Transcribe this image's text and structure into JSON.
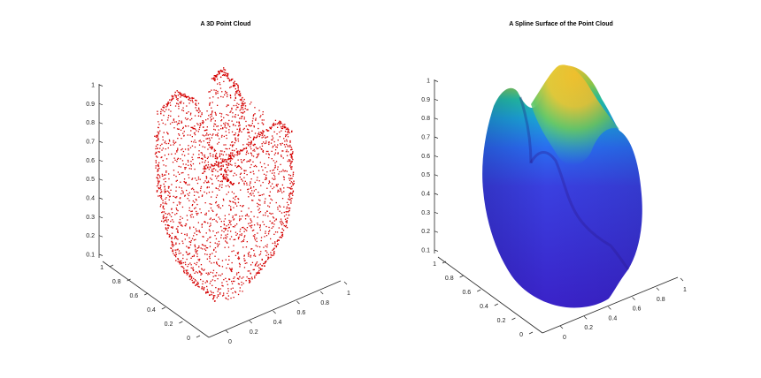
{
  "chart_data": [
    {
      "type": "scatter3d",
      "title": "A 3D Point Cloud",
      "marker_color": "#d40000",
      "xlabel": "",
      "ylabel": "",
      "zlabel": "",
      "x_ticks": [
        "0",
        "0.2",
        "0.4",
        "0.6",
        "0.8",
        "1"
      ],
      "y_ticks": [
        "0",
        "0.2",
        "0.4",
        "0.6",
        "0.8",
        "1"
      ],
      "z_ticks": [
        "0.1",
        "0.2",
        "0.3",
        "0.4",
        "0.5",
        "0.6",
        "0.7",
        "0.8",
        "0.9",
        "1"
      ],
      "xlim": [
        0,
        1
      ],
      "ylim": [
        0,
        1
      ],
      "zlim": [
        0.1,
        1
      ],
      "grid": false
    },
    {
      "type": "surface3d",
      "title": "A Spline Surface of the Point Cloud",
      "colormap": [
        "#3f1fd0",
        "#2f5df0",
        "#1fa0e0",
        "#20c4a0",
        "#8ad04a",
        "#f2c12e",
        "#f7d730"
      ],
      "xlabel": "",
      "ylabel": "",
      "zlabel": "",
      "x_ticks": [
        "0",
        "0.2",
        "0.4",
        "0.6",
        "0.8",
        "1"
      ],
      "y_ticks": [
        "0",
        "0.2",
        "0.4",
        "0.6",
        "0.8",
        "1"
      ],
      "z_ticks": [
        "0.1",
        "0.2",
        "0.3",
        "0.4",
        "0.5",
        "0.6",
        "0.7",
        "0.8",
        "0.9",
        "1"
      ],
      "xlim": [
        0,
        1
      ],
      "ylim": [
        0,
        1
      ],
      "zlim": [
        0.1,
        1
      ],
      "grid": false
    }
  ]
}
